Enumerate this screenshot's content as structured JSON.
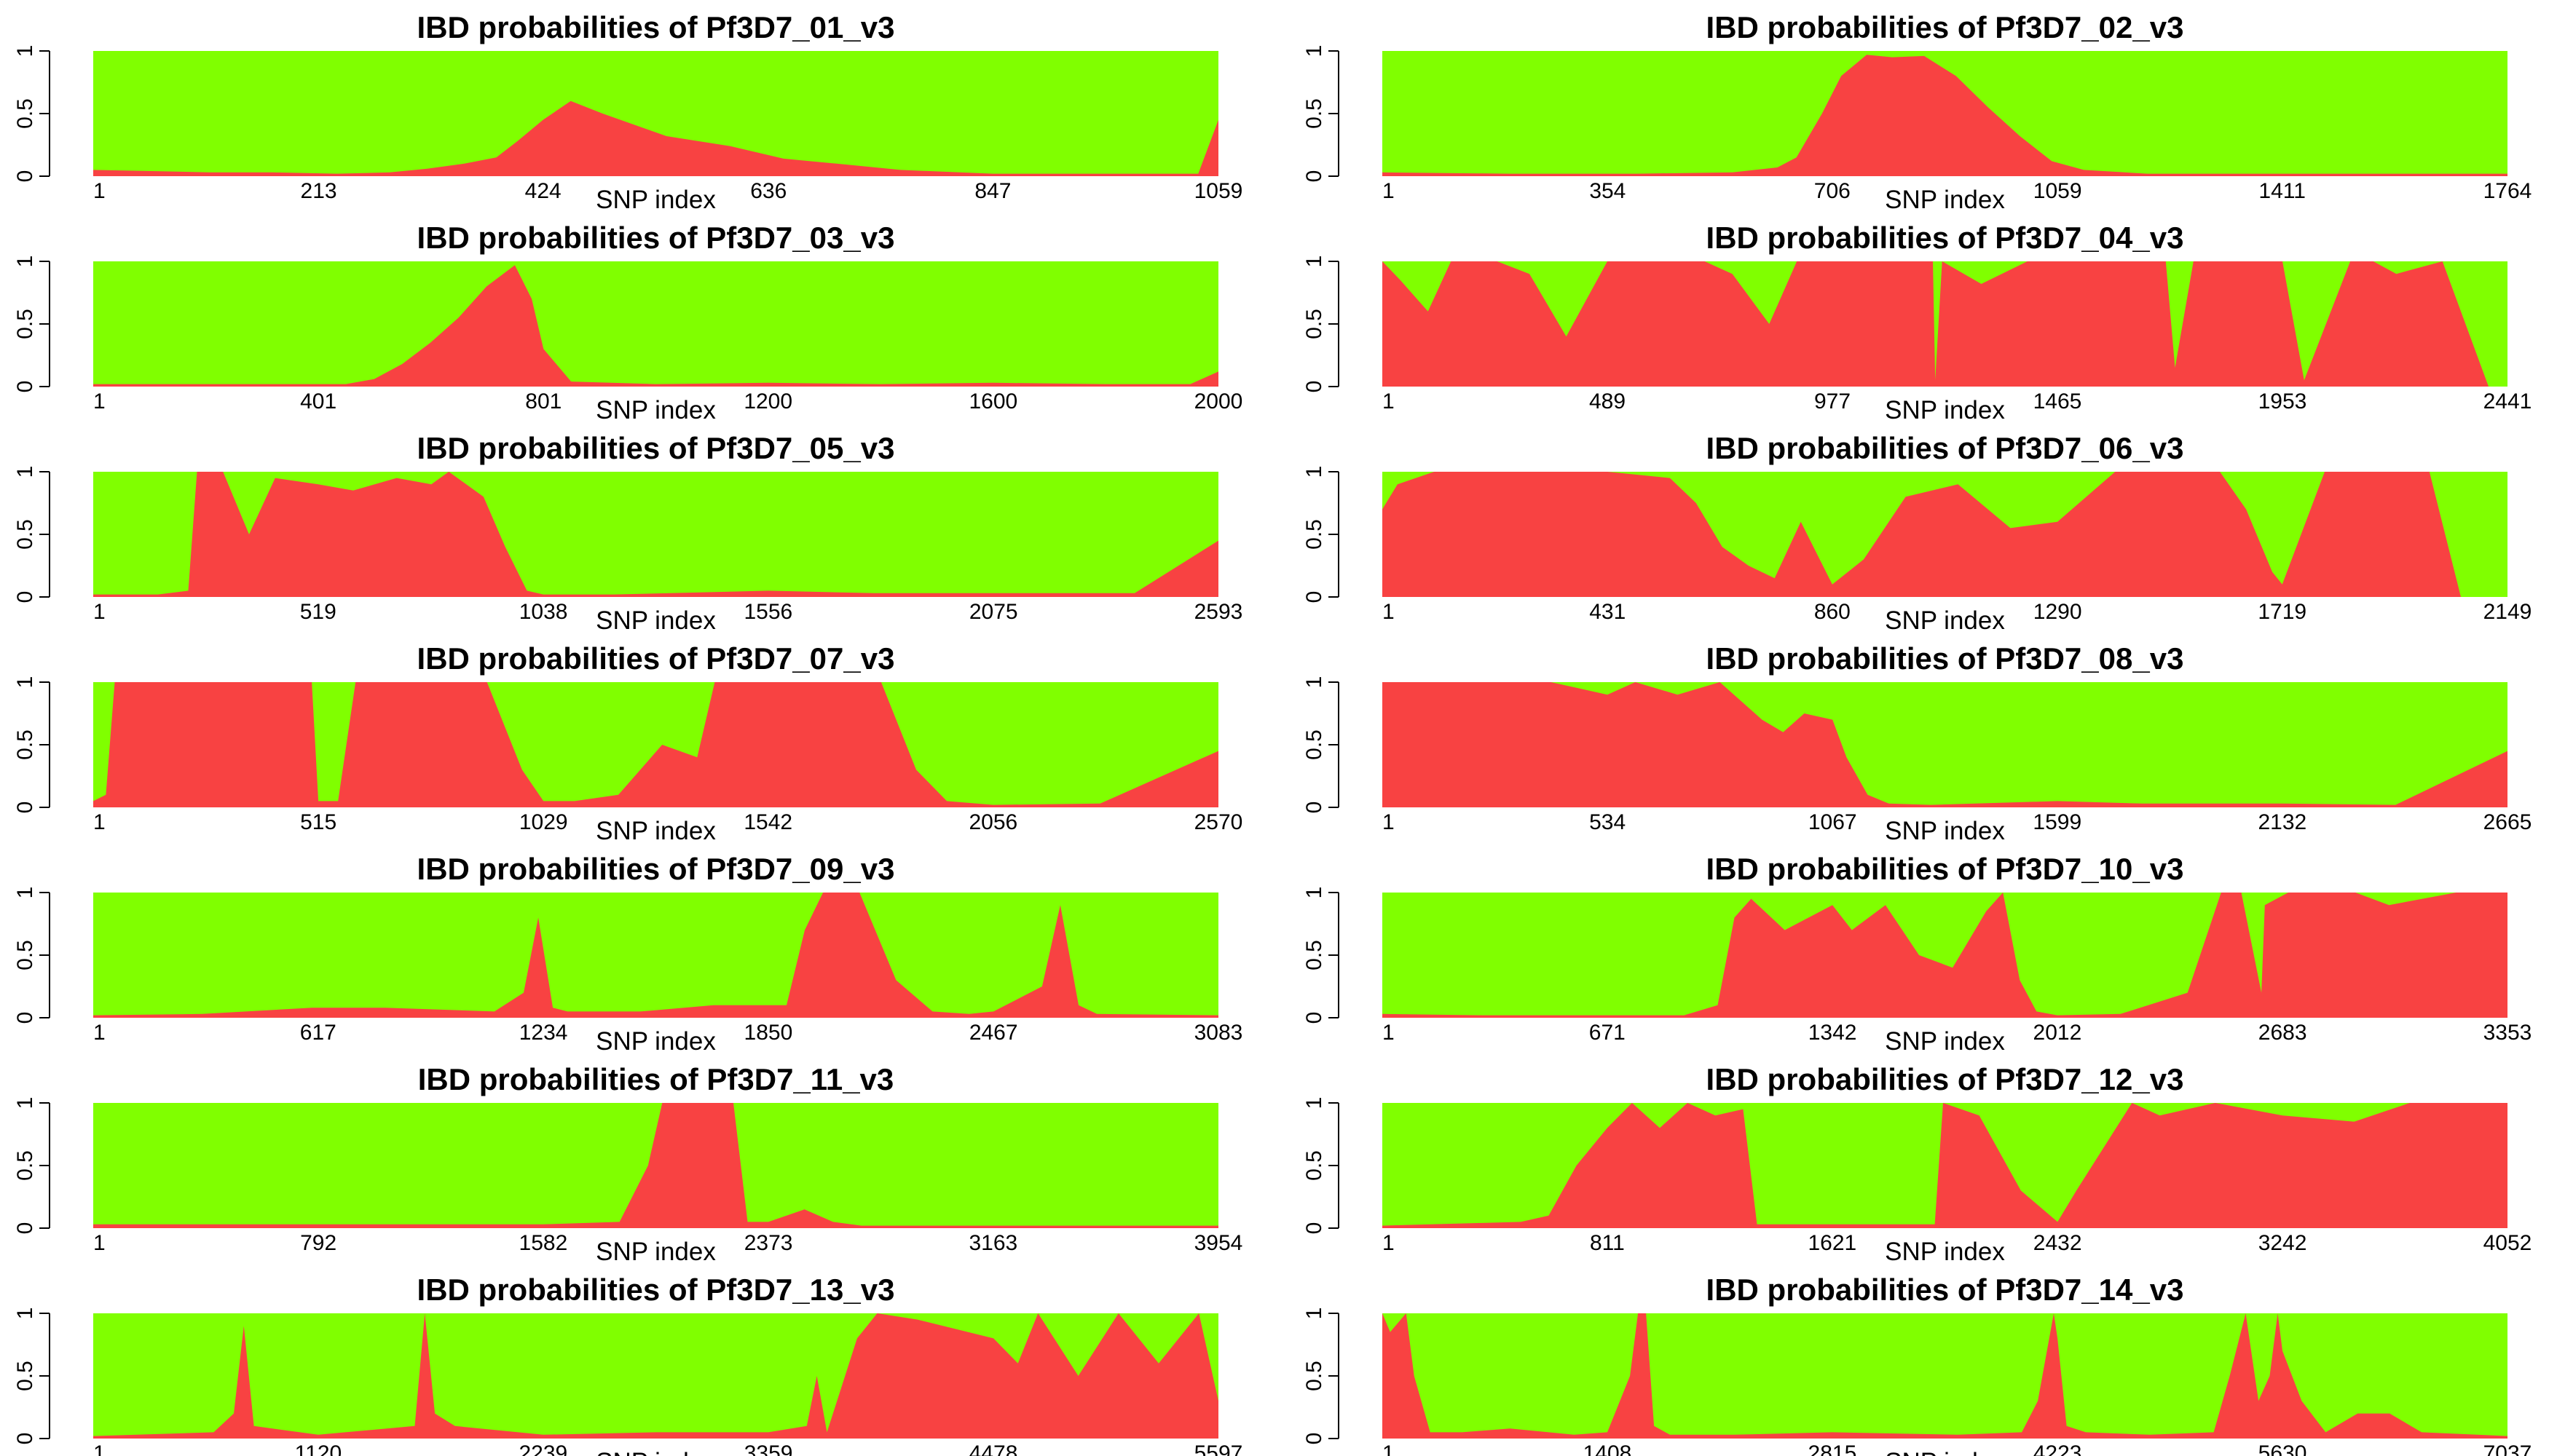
{
  "chart_data": [
    {
      "type": "area",
      "title": "IBD probabilities of Pf3D7_01_v3",
      "xlabel": "SNP index",
      "ylabel": "",
      "xticks": [
        1,
        213,
        424,
        636,
        847,
        1059
      ],
      "yticks": [
        "0",
        "0.5",
        "1"
      ],
      "ylim": [
        0,
        1
      ],
      "series": [
        {
          "name": "",
          "color": "#f84242",
          "x": [
            1,
            60,
            110,
            170,
            230,
            280,
            315,
            350,
            380,
            400,
            424,
            450,
            480,
            540,
            600,
            650,
            700,
            760,
            847,
            950,
            1040,
            1059
          ],
          "values": [
            0.05,
            0.04,
            0.03,
            0.03,
            0.02,
            0.03,
            0.06,
            0.1,
            0.15,
            0.28,
            0.45,
            0.6,
            0.5,
            0.32,
            0.24,
            0.14,
            0.1,
            0.05,
            0.02,
            0.02,
            0.02,
            0.45
          ]
        }
      ]
    },
    {
      "type": "area",
      "title": "IBD probabilities of Pf3D7_02_v3",
      "xlabel": "SNP index",
      "ylabel": "",
      "xticks": [
        1,
        354,
        706,
        1059,
        1411,
        1764
      ],
      "yticks": [
        "0",
        "0.5",
        "1"
      ],
      "ylim": [
        0,
        1
      ],
      "series": [
        {
          "name": "",
          "color": "#f84242",
          "x": [
            1,
            200,
            400,
            550,
            620,
            650,
            690,
            720,
            760,
            800,
            850,
            900,
            950,
            1000,
            1050,
            1100,
            1200,
            1411,
            1600,
            1764
          ],
          "values": [
            0.03,
            0.02,
            0.02,
            0.03,
            0.07,
            0.15,
            0.5,
            0.8,
            0.97,
            0.95,
            0.96,
            0.8,
            0.55,
            0.32,
            0.12,
            0.05,
            0.02,
            0.02,
            0.02,
            0.02
          ]
        }
      ]
    },
    {
      "type": "area",
      "title": "IBD probabilities of Pf3D7_03_v3",
      "xlabel": "SNP index",
      "ylabel": "",
      "xticks": [
        1,
        401,
        801,
        1200,
        1600,
        2000
      ],
      "yticks": [
        "0",
        "0.5",
        "1"
      ],
      "ylim": [
        0,
        1
      ],
      "series": [
        {
          "name": "",
          "color": "#f84242",
          "x": [
            1,
            200,
            450,
            500,
            550,
            600,
            650,
            700,
            750,
            780,
            801,
            850,
            1000,
            1200,
            1400,
            1600,
            1800,
            1950,
            2000
          ],
          "values": [
            0.02,
            0.02,
            0.02,
            0.06,
            0.18,
            0.35,
            0.55,
            0.8,
            0.97,
            0.7,
            0.3,
            0.04,
            0.02,
            0.03,
            0.02,
            0.03,
            0.02,
            0.02,
            0.12
          ]
        }
      ]
    },
    {
      "type": "area",
      "title": "IBD probabilities of Pf3D7_04_v3",
      "xlabel": "SNP index",
      "ylabel": "",
      "xticks": [
        1,
        489,
        977,
        1465,
        1953,
        2441
      ],
      "yticks": [
        "0",
        "0.5",
        "1"
      ],
      "ylim": [
        0,
        1
      ],
      "series": [
        {
          "name": "",
          "color": "#f84242",
          "x": [
            1,
            40,
            100,
            150,
            250,
            320,
            400,
            489,
            600,
            700,
            760,
            840,
            900,
            977,
            1100,
            1195,
            1200,
            1215,
            1300,
            1400,
            1500,
            1600,
            1700,
            1720,
            1760,
            1800,
            1953,
            2000,
            2100,
            2150,
            2200,
            2300,
            2400,
            2441
          ],
          "values": [
            1,
            0.85,
            0.6,
            1,
            1,
            0.9,
            0.4,
            1,
            1,
            1,
            0.9,
            0.5,
            1,
            1,
            1,
            1,
            0.05,
            1,
            0.82,
            1,
            1,
            1,
            1,
            0.15,
            1,
            1,
            1,
            0.05,
            1,
            1,
            0.9,
            1,
            0,
            0
          ]
        }
      ]
    },
    {
      "type": "area",
      "title": "IBD probabilities of Pf3D7_05_v3",
      "xlabel": "SNP index",
      "ylabel": "",
      "xticks": [
        1,
        519,
        1038,
        1556,
        2075,
        2593
      ],
      "yticks": [
        "0",
        "0.5",
        "1"
      ],
      "ylim": [
        0,
        1
      ],
      "series": [
        {
          "name": "",
          "color": "#f84242",
          "x": [
            1,
            150,
            220,
            240,
            300,
            360,
            420,
            519,
            600,
            700,
            780,
            820,
            900,
            950,
            1000,
            1038,
            1200,
            1556,
            1800,
            2075,
            2400,
            2593
          ],
          "values": [
            0.02,
            0.02,
            0.05,
            1,
            1,
            0.5,
            0.95,
            0.9,
            0.85,
            0.95,
            0.9,
            1,
            0.8,
            0.4,
            0.05,
            0.02,
            0.02,
            0.05,
            0.03,
            0.03,
            0.03,
            0.45
          ]
        }
      ]
    },
    {
      "type": "area",
      "title": "IBD probabilities of Pf3D7_06_v3",
      "xlabel": "SNP index",
      "ylabel": "",
      "xticks": [
        1,
        431,
        860,
        1290,
        1719,
        2149
      ],
      "yticks": [
        "0",
        "0.5",
        "1"
      ],
      "ylim": [
        0,
        1
      ],
      "series": [
        {
          "name": "",
          "color": "#f84242",
          "x": [
            1,
            30,
            100,
            200,
            300,
            431,
            550,
            600,
            650,
            700,
            750,
            800,
            860,
            920,
            1000,
            1100,
            1200,
            1290,
            1400,
            1500,
            1600,
            1650,
            1700,
            1719,
            1800,
            1900,
            2000,
            2060,
            2070,
            2149
          ],
          "values": [
            0.7,
            0.9,
            1,
            1,
            1,
            1,
            0.95,
            0.75,
            0.4,
            0.25,
            0.15,
            0.6,
            0.1,
            0.3,
            0.8,
            0.9,
            0.55,
            0.6,
            1,
            1,
            1,
            0.7,
            0.2,
            0.1,
            1,
            1,
            1,
            0,
            0,
            0
          ]
        }
      ]
    },
    {
      "type": "area",
      "title": "IBD probabilities of Pf3D7_07_v3",
      "xlabel": "SNP index",
      "ylabel": "",
      "xticks": [
        1,
        515,
        1029,
        1542,
        2056,
        2570
      ],
      "yticks": [
        "0",
        "0.5",
        "1"
      ],
      "ylim": [
        0,
        1
      ],
      "series": [
        {
          "name": "",
          "color": "#f84242",
          "x": [
            1,
            30,
            50,
            100,
            300,
            500,
            515,
            560,
            600,
            650,
            700,
            900,
            980,
            1029,
            1100,
            1200,
            1250,
            1300,
            1380,
            1420,
            1542,
            1700,
            1800,
            1880,
            1950,
            2056,
            2300,
            2570
          ],
          "values": [
            0.05,
            0.1,
            1,
            1,
            1,
            1,
            0.05,
            0.05,
            1,
            1,
            1,
            1,
            0.3,
            0.05,
            0.05,
            0.1,
            0.3,
            0.5,
            0.4,
            1,
            1,
            1,
            1,
            0.3,
            0.05,
            0.02,
            0.03,
            0.45
          ]
        }
      ]
    },
    {
      "type": "area",
      "title": "IBD probabilities of Pf3D7_08_v3",
      "xlabel": "SNP index",
      "ylabel": "",
      "xticks": [
        1,
        534,
        1067,
        1599,
        2132,
        2665
      ],
      "yticks": [
        "0",
        "0.5",
        "1"
      ],
      "ylim": [
        0,
        1
      ],
      "series": [
        {
          "name": "",
          "color": "#f84242",
          "x": [
            1,
            200,
            400,
            534,
            600,
            700,
            800,
            900,
            950,
            1000,
            1067,
            1100,
            1150,
            1200,
            1300,
            1599,
            1800,
            2132,
            2400,
            2665
          ],
          "values": [
            1,
            1,
            1,
            0.9,
            1,
            0.9,
            1,
            0.7,
            0.6,
            0.75,
            0.7,
            0.4,
            0.1,
            0.03,
            0.02,
            0.05,
            0.03,
            0.03,
            0.02,
            0.45
          ]
        }
      ]
    },
    {
      "type": "area",
      "title": "IBD probabilities of Pf3D7_09_v3",
      "xlabel": "SNP index",
      "ylabel": "",
      "xticks": [
        1,
        617,
        1234,
        1850,
        2467,
        3083
      ],
      "yticks": [
        "0",
        "0.5",
        "1"
      ],
      "ylim": [
        0,
        1
      ],
      "series": [
        {
          "name": "",
          "color": "#f84242",
          "x": [
            1,
            300,
            600,
            800,
            1100,
            1180,
            1220,
            1260,
            1300,
            1500,
            1700,
            1900,
            1950,
            2000,
            2100,
            2200,
            2300,
            2400,
            2467,
            2600,
            2650,
            2700,
            2750,
            3083
          ],
          "values": [
            0.02,
            0.03,
            0.08,
            0.08,
            0.05,
            0.2,
            0.8,
            0.08,
            0.05,
            0.05,
            0.1,
            0.1,
            0.7,
            1,
            1,
            0.3,
            0.05,
            0.03,
            0.05,
            0.25,
            0.9,
            0.1,
            0.03,
            0.02
          ]
        }
      ]
    },
    {
      "type": "area",
      "title": "IBD probabilities of Pf3D7_10_v3",
      "xlabel": "SNP index",
      "ylabel": "",
      "xticks": [
        1,
        671,
        1342,
        2012,
        2683,
        3353
      ],
      "yticks": [
        "0",
        "0.5",
        "1"
      ],
      "ylim": [
        0,
        1
      ],
      "series": [
        {
          "name": "",
          "color": "#f84242",
          "x": [
            1,
            300,
            671,
            900,
            1000,
            1050,
            1100,
            1200,
            1342,
            1400,
            1500,
            1600,
            1700,
            1800,
            1850,
            1900,
            1950,
            2012,
            2200,
            2400,
            2500,
            2560,
            2620,
            2630,
            2700,
            2800,
            2900,
            3000,
            3200,
            3353
          ],
          "values": [
            0.03,
            0.02,
            0.02,
            0.02,
            0.1,
            0.8,
            0.95,
            0.7,
            0.9,
            0.7,
            0.9,
            0.5,
            0.4,
            0.85,
            1,
            0.3,
            0.05,
            0.02,
            0.03,
            0.2,
            1,
            1,
            0.2,
            0.9,
            1,
            1,
            1,
            0.9,
            1,
            1
          ]
        }
      ]
    },
    {
      "type": "area",
      "title": "IBD probabilities of Pf3D7_11_v3",
      "xlabel": "SNP index",
      "ylabel": "",
      "xticks": [
        1,
        792,
        1582,
        2373,
        3163,
        3954
      ],
      "yticks": [
        "0",
        "0.5",
        "1"
      ],
      "ylim": [
        0,
        1
      ],
      "series": [
        {
          "name": "",
          "color": "#f84242",
          "x": [
            1,
            792,
            1582,
            1850,
            1950,
            2000,
            2050,
            2150,
            2250,
            2300,
            2373,
            2500,
            2600,
            2700,
            3163,
            3600,
            3954
          ],
          "values": [
            0.03,
            0.03,
            0.03,
            0.05,
            0.5,
            1,
            1,
            1,
            1,
            0.05,
            0.05,
            0.15,
            0.05,
            0.02,
            0.02,
            0.02,
            0.02
          ]
        }
      ]
    },
    {
      "type": "area",
      "title": "IBD probabilities of Pf3D7_12_v3",
      "xlabel": "SNP index",
      "ylabel": "",
      "xticks": [
        1,
        811,
        1621,
        2432,
        3242,
        4052
      ],
      "yticks": [
        "0",
        "0.5",
        "1"
      ],
      "ylim": [
        0,
        1
      ],
      "series": [
        {
          "name": "",
          "color": "#f84242",
          "x": [
            1,
            500,
            600,
            700,
            811,
            900,
            1000,
            1100,
            1200,
            1300,
            1350,
            1400,
            1621,
            1990,
            2020,
            2150,
            2300,
            2432,
            2500,
            2700,
            2800,
            3000,
            3242,
            3500,
            3700,
            4052
          ],
          "values": [
            0.02,
            0.05,
            0.1,
            0.5,
            0.8,
            1,
            0.8,
            1,
            0.9,
            0.95,
            0.03,
            0.03,
            0.03,
            0.03,
            1,
            0.9,
            0.3,
            0.05,
            0.3,
            1,
            0.9,
            1,
            0.9,
            0.85,
            1,
            1
          ]
        }
      ]
    },
    {
      "type": "area",
      "title": "IBD probabilities of Pf3D7_13_v3",
      "xlabel": "SNP index",
      "ylabel": "",
      "xticks": [
        1,
        1120,
        2239,
        3359,
        4478,
        5597
      ],
      "yticks": [
        "0",
        "0.5",
        "1"
      ],
      "ylim": [
        0,
        1
      ],
      "series": [
        {
          "name": "",
          "color": "#f84242",
          "x": [
            1,
            600,
            700,
            750,
            800,
            1120,
            1600,
            1650,
            1700,
            1800,
            2239,
            2800,
            3359,
            3550,
            3600,
            3650,
            3800,
            3900,
            4100,
            4478,
            4600,
            4700,
            4900,
            5100,
            5300,
            5500,
            5597
          ],
          "values": [
            0.02,
            0.05,
            0.2,
            0.9,
            0.1,
            0.03,
            0.1,
            1,
            0.2,
            0.1,
            0.03,
            0.05,
            0.05,
            0.1,
            0.5,
            0.05,
            0.8,
            1,
            0.95,
            0.8,
            0.6,
            1,
            0.5,
            1,
            0.6,
            1,
            0.3
          ]
        }
      ]
    },
    {
      "type": "area",
      "title": "IBD probabilities of Pf3D7_14_v3",
      "xlabel": "SNP index",
      "ylabel": "",
      "xticks": [
        1,
        1408,
        2815,
        4223,
        5630,
        7037
      ],
      "yticks": [
        "0",
        "0.5",
        "1"
      ],
      "ylim": [
        0,
        1
      ],
      "series": [
        {
          "name": "",
          "color": "#f84242",
          "x": [
            1,
            50,
            150,
            200,
            300,
            500,
            800,
            1200,
            1408,
            1550,
            1600,
            1650,
            1700,
            1800,
            2200,
            2815,
            3600,
            4000,
            4100,
            4200,
            4223,
            4280,
            4400,
            4800,
            5200,
            5300,
            5400,
            5480,
            5550,
            5600,
            5630,
            5750,
            5900,
            6100,
            6300,
            6500,
            7037
          ],
          "values": [
            1,
            0.85,
            1,
            0.5,
            0.05,
            0.05,
            0.08,
            0.03,
            0.05,
            0.5,
            1,
            1,
            0.1,
            0.03,
            0.03,
            0.05,
            0.03,
            0.05,
            0.3,
            1,
            0.8,
            0.1,
            0.05,
            0.03,
            0.05,
            0.5,
            1,
            0.3,
            0.5,
            1,
            0.7,
            0.3,
            0.05,
            0.2,
            0.2,
            0.05,
            0.02
          ]
        }
      ]
    }
  ]
}
